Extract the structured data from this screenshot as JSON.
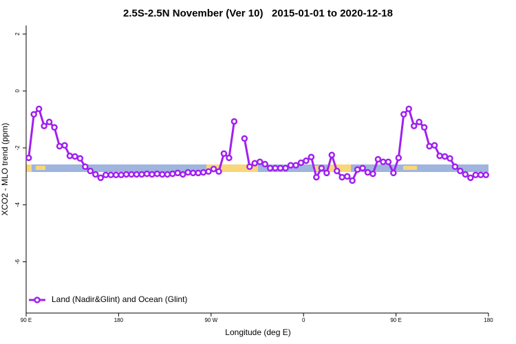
{
  "chart_data": {
    "type": "line",
    "title": "2.5S-2.5N November (Ver 10)   2015-01-01 to 2020-12-18",
    "x_label": "Longitude (deg E)",
    "y_label": "XCO2 - MLO trend (ppm)",
    "xlim": [
      90,
      540
    ],
    "ylim": [
      -7.8,
      2.3
    ],
    "xticks": [
      {
        "value": 90,
        "label": "90 E"
      },
      180,
      {
        "value": 270,
        "label": "90 W"
      },
      {
        "value": 360,
        "label": "0"
      },
      {
        "value": 450,
        "label": "90 E"
      },
      {
        "value": 540,
        "label": "180"
      }
    ],
    "yticks": [
      2,
      0,
      -2,
      -4,
      -6
    ],
    "x": [
      92.5,
      97.5,
      102.5,
      107.5,
      112.5,
      117.5,
      122.5,
      127.5,
      132.5,
      137.5,
      142.5,
      147.5,
      152.5,
      157.5,
      162.5,
      167.5,
      172.5,
      177.5,
      182.5,
      187.5,
      192.5,
      197.5,
      202.5,
      207.5,
      212.5,
      217.5,
      222.5,
      227.5,
      232.5,
      237.5,
      242.5,
      247.5,
      252.5,
      257.5,
      262.5,
      267.5,
      272.5,
      277.5,
      282.5,
      287.5,
      292.5,
      297.5,
      302.5,
      307.5,
      312.5,
      317.5,
      322.5,
      327.5,
      332.5,
      337.5,
      342.5,
      347.5,
      352.5,
      357.5,
      362.5,
      367.5,
      372.5,
      377.5,
      382.5,
      387.5,
      392.5,
      397.5,
      402.5,
      407.5,
      412.5,
      417.5,
      422.5,
      427.5,
      432.5,
      437.5,
      442.5,
      447.5,
      452.5,
      457.5,
      462.5,
      467.5,
      472.5,
      477.5,
      482.5,
      487.5,
      492.5,
      497.5,
      502.5,
      507.5,
      512.5,
      517.5,
      522.5,
      527.5,
      532.5,
      537.5
    ],
    "series": [
      {
        "name": "Land (Nadir&Glint) and Ocean (Glint)",
        "color": "#a020f0",
        "values": [
          -2.35,
          -0.82,
          -0.63,
          -1.23,
          -1.09,
          -1.28,
          -1.94,
          -1.91,
          -2.28,
          -2.3,
          -2.37,
          -2.66,
          -2.81,
          -2.93,
          -3.05,
          -2.95,
          -2.95,
          -2.95,
          -2.95,
          -2.93,
          -2.93,
          -2.93,
          -2.93,
          -2.91,
          -2.93,
          -2.91,
          -2.93,
          -2.93,
          -2.91,
          -2.88,
          -2.93,
          -2.86,
          -2.88,
          -2.88,
          -2.86,
          -2.83,
          -2.74,
          -2.83,
          -2.2,
          -2.35,
          -1.07,
          null,
          -1.67,
          -2.66,
          -2.54,
          -2.49,
          -2.57,
          -2.71,
          -2.71,
          -2.71,
          -2.71,
          -2.61,
          -2.61,
          -2.52,
          -2.45,
          -2.32,
          -3.03,
          -2.71,
          -2.88,
          -2.25,
          -2.81,
          -3.03,
          -3.0,
          -3.15,
          -2.76,
          -2.71,
          -2.86,
          -2.91,
          -2.4,
          -2.49,
          -2.49,
          -2.88,
          -2.35,
          -0.82,
          -0.63,
          -1.23,
          -1.09,
          -1.28,
          -1.94,
          -1.91,
          -2.28,
          -2.3,
          -2.37,
          -2.66,
          -2.81,
          -2.93,
          -3.05,
          -2.95,
          -2.95,
          -2.95
        ]
      }
    ],
    "legend": "bottom-left"
  }
}
